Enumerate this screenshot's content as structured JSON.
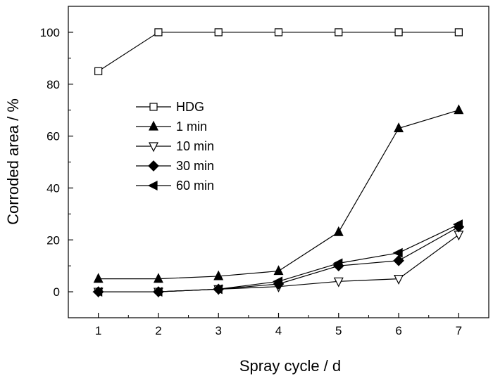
{
  "chart_data": {
    "type": "line",
    "xlabel": "Spray cycle / d",
    "ylabel": "Corroded area / %",
    "xlim": [
      0.5,
      7.5
    ],
    "ylim": [
      -10,
      110
    ],
    "xticks": [
      1,
      2,
      3,
      4,
      5,
      6,
      7
    ],
    "yticks": [
      0,
      20,
      40,
      60,
      80,
      100
    ],
    "grid": false,
    "legend_position": "left-middle",
    "x": [
      1,
      2,
      3,
      4,
      5,
      6,
      7
    ],
    "series": [
      {
        "name": "HDG",
        "marker": "square-open",
        "values": [
          85,
          100,
          100,
          100,
          100,
          100,
          100
        ]
      },
      {
        "name": "1 min",
        "marker": "triangle-up-filled",
        "values": [
          5,
          5,
          6,
          8,
          23,
          63,
          70
        ]
      },
      {
        "name": "10 min",
        "marker": "triangle-down-open",
        "values": [
          0,
          0,
          1,
          2,
          4,
          5,
          22
        ]
      },
      {
        "name": "30 min",
        "marker": "diamond-filled",
        "values": [
          0,
          0,
          1,
          3,
          10,
          12,
          25
        ]
      },
      {
        "name": "60 min",
        "marker": "triangle-left-filled",
        "values": [
          0,
          0,
          1,
          4,
          11,
          15,
          26
        ]
      }
    ]
  }
}
